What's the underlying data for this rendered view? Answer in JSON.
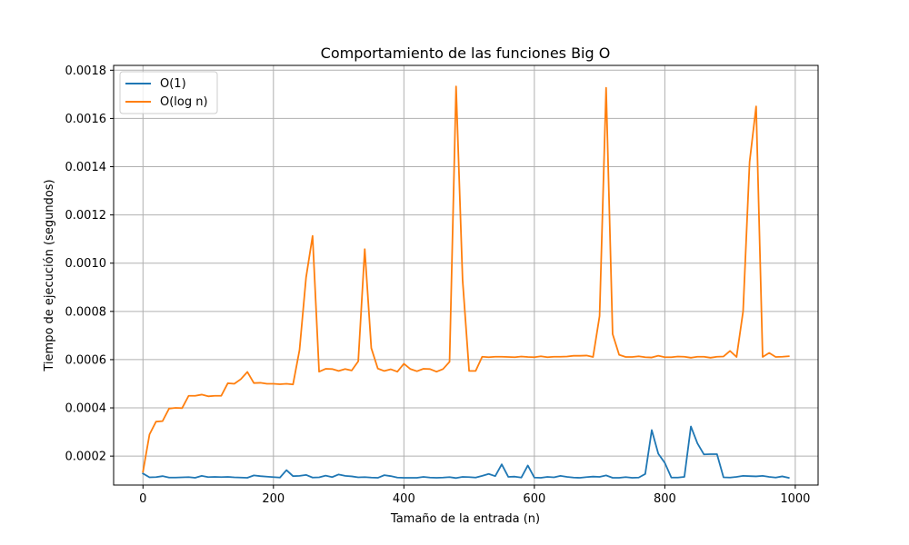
{
  "chart_data": {
    "type": "line",
    "title": "Comportamiento de las funciones Big O",
    "xlabel": "Tamaño de la entrada (n)",
    "ylabel": "Tiempo de ejecución (segundos)",
    "xlim": [
      -45,
      1035
    ],
    "ylim": [
      8e-05,
      0.00182
    ],
    "xticks": [
      0,
      200,
      400,
      600,
      800,
      1000
    ],
    "xtick_labels": [
      "0",
      "200",
      "400",
      "600",
      "800",
      "1000"
    ],
    "yticks": [
      0.0002,
      0.0004,
      0.0006,
      0.0008,
      0.001,
      0.0012,
      0.0014,
      0.0016,
      0.0018
    ],
    "ytick_labels": [
      "0.0002",
      "0.0004",
      "0.0006",
      "0.0008",
      "0.0010",
      "0.0012",
      "0.0014",
      "0.0016",
      "0.0018"
    ],
    "grid": true,
    "legend_position": "upper-left",
    "colors": {
      "o1": "#1f77b4",
      "ologn": "#ff7f0e",
      "grid": "#b0b0b0"
    },
    "x": [
      0,
      10,
      20,
      30,
      40,
      50,
      60,
      70,
      80,
      90,
      100,
      110,
      120,
      130,
      140,
      150,
      160,
      170,
      180,
      190,
      200,
      210,
      220,
      230,
      240,
      250,
      260,
      270,
      280,
      290,
      300,
      310,
      320,
      330,
      340,
      350,
      360,
      370,
      380,
      390,
      400,
      410,
      420,
      430,
      440,
      450,
      460,
      470,
      480,
      490,
      500,
      510,
      520,
      530,
      540,
      550,
      560,
      570,
      580,
      590,
      600,
      610,
      620,
      630,
      640,
      650,
      660,
      670,
      680,
      690,
      700,
      710,
      720,
      730,
      740,
      750,
      760,
      770,
      780,
      790,
      800,
      810,
      820,
      830,
      840,
      850,
      860,
      870,
      880,
      890,
      900,
      910,
      920,
      930,
      940,
      950,
      960,
      970,
      980,
      990
    ],
    "series": [
      {
        "name": "O(1)",
        "values": [
          0.000128,
          0.000112,
          0.000113,
          0.000117,
          0.000111,
          0.000111,
          0.000112,
          0.000113,
          0.00011,
          0.000118,
          0.000113,
          0.000114,
          0.000113,
          0.000114,
          0.000112,
          0.000111,
          0.00011,
          0.00012,
          0.000117,
          0.000115,
          0.000113,
          0.000111,
          0.000142,
          0.000117,
          0.000118,
          0.000122,
          0.000111,
          0.000112,
          0.000119,
          0.000113,
          0.000124,
          0.000118,
          0.000116,
          0.000112,
          0.000113,
          0.000111,
          0.00011,
          0.000121,
          0.000117,
          0.000111,
          0.00011,
          0.00011,
          0.00011,
          0.000114,
          0.000111,
          0.00011,
          0.000111,
          0.000113,
          0.000109,
          0.000114,
          0.000113,
          0.000111,
          0.000118,
          0.000126,
          0.000117,
          0.000166,
          0.000114,
          0.000115,
          0.000111,
          0.000161,
          0.000111,
          0.00011,
          0.000114,
          0.000112,
          0.000118,
          0.000114,
          0.000111,
          0.00011,
          0.000113,
          0.000115,
          0.000114,
          0.00012,
          0.00011,
          0.00011,
          0.000113,
          0.00011,
          0.000111,
          0.000126,
          0.000308,
          0.00021,
          0.000172,
          0.000111,
          0.000111,
          0.000114,
          0.000323,
          0.000253,
          0.000207,
          0.000208,
          0.000208,
          0.000112,
          0.000111,
          0.000114,
          0.000118,
          0.000117,
          0.000116,
          0.000118,
          0.000114,
          0.000111,
          0.000116,
          0.00011
        ]
      },
      {
        "name": "O(log n)",
        "values": [
          0.000135,
          0.00029,
          0.000343,
          0.000345,
          0.000397,
          0.0004,
          0.000399,
          0.00045,
          0.00045,
          0.000455,
          0.000448,
          0.00045,
          0.00045,
          0.000502,
          0.0005,
          0.000519,
          0.000549,
          0.000503,
          0.000504,
          0.0005,
          0.0005,
          0.000498,
          0.0005,
          0.000497,
          0.00064,
          0.00094,
          0.001113,
          0.00055,
          0.000562,
          0.000561,
          0.000553,
          0.000561,
          0.000555,
          0.000593,
          0.001058,
          0.000648,
          0.000563,
          0.000553,
          0.00056,
          0.00055,
          0.000583,
          0.000561,
          0.000552,
          0.000562,
          0.000561,
          0.00055,
          0.000561,
          0.000591,
          0.001733,
          0.00093,
          0.000553,
          0.000553,
          0.000612,
          0.00061,
          0.000612,
          0.000612,
          0.000611,
          0.00061,
          0.000613,
          0.000611,
          0.00061,
          0.000614,
          0.00061,
          0.000612,
          0.000612,
          0.000613,
          0.000616,
          0.000616,
          0.000617,
          0.000611,
          0.000781,
          0.001727,
          0.000706,
          0.00062,
          0.000611,
          0.000611,
          0.000614,
          0.00061,
          0.000609,
          0.000616,
          0.00061,
          0.00061,
          0.000613,
          0.000612,
          0.000608,
          0.000612,
          0.000612,
          0.000608,
          0.000612,
          0.000613,
          0.000636,
          0.000611,
          0.0008,
          0.00142,
          0.00165,
          0.000611,
          0.000628,
          0.000611,
          0.000612,
          0.000614
        ]
      }
    ]
  }
}
